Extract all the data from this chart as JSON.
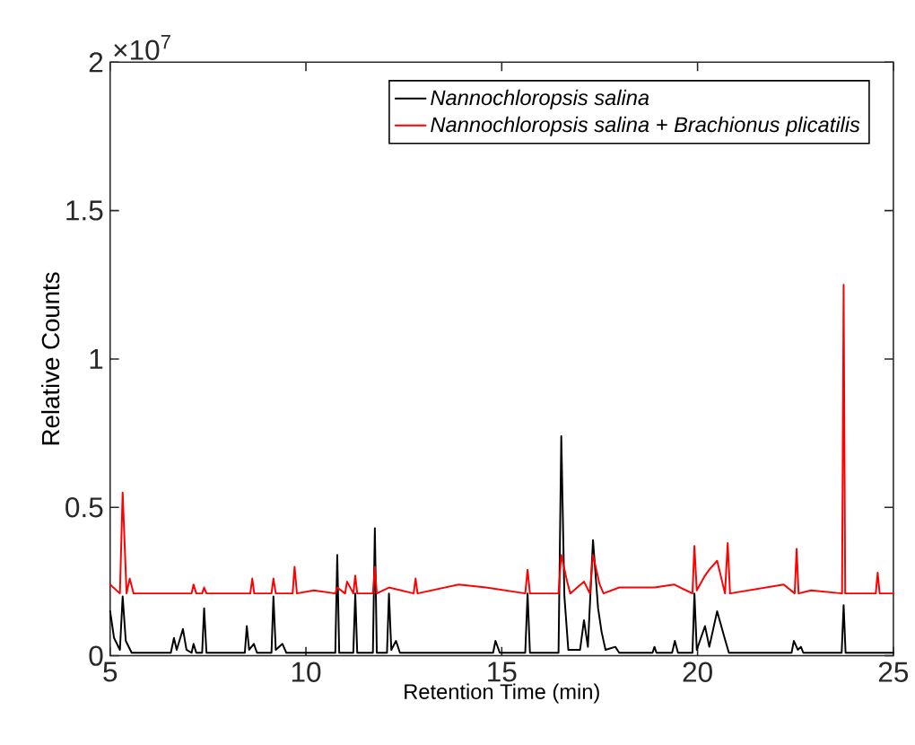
{
  "chart_data": {
    "type": "line",
    "xlabel": "Retention Time (min)",
    "ylabel": "Relative Counts",
    "annotations": [
      "×10$^{7}$"
    ],
    "xlim": [
      5,
      25
    ],
    "ylim": [
      0,
      2
    ],
    "xticks": [
      5,
      10,
      15,
      20,
      25
    ],
    "yticks": [
      0,
      0.5,
      1,
      1.5,
      2
    ],
    "legend": "top right",
    "series": [
      {
        "name": "Nannochloropsis salina",
        "color": "#000000",
        "x": [
          5,
          5.1,
          5.25,
          5.32,
          5.4,
          5.55,
          6.55,
          6.63,
          6.7,
          6.86,
          6.95,
          7.08,
          7.13,
          7.2,
          7.35,
          7.4,
          7.46,
          8.44,
          8.49,
          8.55,
          8.67,
          8.75,
          9.12,
          9.17,
          9.23,
          9.4,
          9.5,
          10.75,
          10.8,
          10.85,
          11.21,
          11.26,
          11.31,
          11.71,
          11.76,
          11.81,
          12.07,
          12.12,
          12.18,
          12.3,
          12.4,
          14.78,
          14.84,
          14.95,
          15.6,
          15.66,
          15.72,
          16.45,
          16.52,
          16.6,
          16.7,
          17.0,
          17.1,
          17.2,
          17.33,
          17.46,
          17.55,
          17.65,
          17.9,
          18.0,
          18.85,
          18.9,
          18.95,
          19.35,
          19.42,
          19.5,
          19.87,
          19.92,
          19.98,
          20.19,
          20.3,
          20.5,
          20.69,
          20.8,
          22.4,
          22.46,
          22.56,
          22.64,
          22.7,
          23.68,
          23.73,
          23.78,
          25
        ],
        "values": [
          0.15,
          0.06,
          0.02,
          0.2,
          0.05,
          0.01,
          0.01,
          0.06,
          0.02,
          0.09,
          0.02,
          0.01,
          0.04,
          0.01,
          0.01,
          0.16,
          0.01,
          0.01,
          0.1,
          0.02,
          0.04,
          0.01,
          0.01,
          0.2,
          0.02,
          0.04,
          0.01,
          0.01,
          0.34,
          0.01,
          0.01,
          0.21,
          0.01,
          0.01,
          0.43,
          0.01,
          0.01,
          0.21,
          0.02,
          0.05,
          0.01,
          0.01,
          0.05,
          0.01,
          0.01,
          0.21,
          0.01,
          0.01,
          0.74,
          0.2,
          0.02,
          0.02,
          0.12,
          0.03,
          0.39,
          0.16,
          0.08,
          0.02,
          0.03,
          0.01,
          0.01,
          0.03,
          0.01,
          0.01,
          0.05,
          0.01,
          0.01,
          0.21,
          0.02,
          0.1,
          0.03,
          0.15,
          0.06,
          0.01,
          0.01,
          0.05,
          0.02,
          0.03,
          0.01,
          0.01,
          0.17,
          0.01,
          0.01
        ]
      },
      {
        "name": "Nannochloropsis salina + Brachionus plicatilis",
        "color": "#ff0000",
        "x": [
          5,
          5.25,
          5.32,
          5.42,
          5.5,
          5.6,
          7.08,
          7.13,
          7.2,
          7.35,
          7.4,
          7.46,
          8.58,
          8.63,
          8.68,
          9.12,
          9.17,
          9.23,
          9.66,
          9.71,
          9.77,
          10.2,
          10.75,
          10.8,
          11.0,
          11.05,
          11.21,
          11.26,
          11.31,
          11.71,
          11.76,
          11.81,
          12.12,
          12.75,
          12.8,
          12.85,
          13.9,
          14.6,
          15.6,
          15.66,
          15.72,
          16.45,
          16.52,
          16.67,
          16.75,
          17.1,
          17.25,
          17.33,
          17.5,
          17.6,
          18.0,
          18.9,
          19.4,
          19.87,
          19.92,
          19.98,
          20.19,
          20.3,
          20.5,
          20.7,
          20.77,
          20.83,
          22.2,
          22.48,
          22.53,
          22.58,
          22.9,
          23.69,
          23.73,
          23.77,
          24.55,
          24.6,
          24.65,
          25
        ],
        "values": [
          0.24,
          0.21,
          0.55,
          0.21,
          0.26,
          0.21,
          0.21,
          0.24,
          0.21,
          0.21,
          0.23,
          0.21,
          0.21,
          0.26,
          0.21,
          0.21,
          0.26,
          0.21,
          0.21,
          0.3,
          0.21,
          0.22,
          0.21,
          0.23,
          0.21,
          0.25,
          0.21,
          0.27,
          0.21,
          0.21,
          0.3,
          0.21,
          0.23,
          0.21,
          0.26,
          0.21,
          0.24,
          0.23,
          0.21,
          0.29,
          0.21,
          0.21,
          0.34,
          0.25,
          0.21,
          0.25,
          0.21,
          0.34,
          0.24,
          0.21,
          0.23,
          0.23,
          0.24,
          0.21,
          0.37,
          0.22,
          0.27,
          0.29,
          0.32,
          0.21,
          0.38,
          0.21,
          0.24,
          0.21,
          0.36,
          0.21,
          0.22,
          0.21,
          1.25,
          0.21,
          0.21,
          0.28,
          0.21,
          0.21
        ]
      }
    ]
  }
}
